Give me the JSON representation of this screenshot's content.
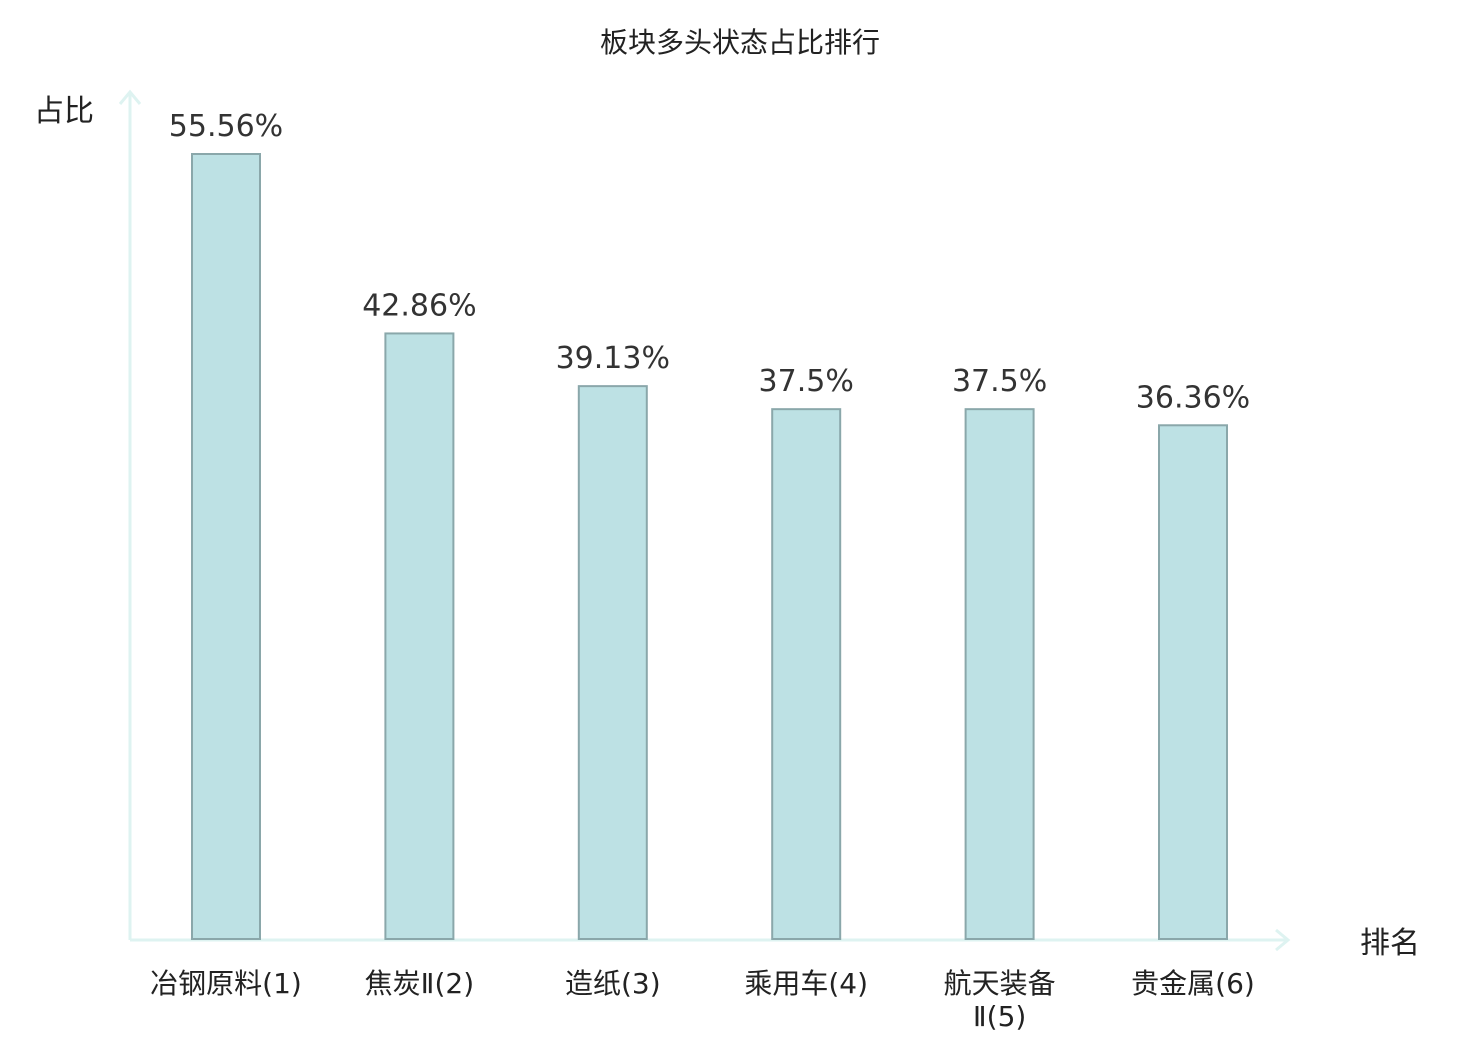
{
  "chart_data": {
    "type": "bar",
    "title": "板块多头状态占比排行",
    "ylabel": "占比",
    "xlabel": "排名",
    "categories": [
      "冶钢原料(1)",
      "焦炭Ⅱ(2)",
      "造纸(3)",
      "乘用车(4)",
      "航天装备Ⅱ(5)",
      "贵金属(6)"
    ],
    "category_lines": [
      [
        "冶钢原料(1)"
      ],
      [
        "焦炭Ⅱ(2)"
      ],
      [
        "造纸(3)"
      ],
      [
        "乘用车(4)"
      ],
      [
        "航天装备",
        "Ⅱ(5)"
      ],
      [
        "贵金属(6)"
      ]
    ],
    "values": [
      55.56,
      42.86,
      39.13,
      37.5,
      37.5,
      36.36
    ],
    "value_labels": [
      "55.56%",
      "42.86%",
      "39.13%",
      "37.5%",
      "37.5%",
      "36.36%"
    ],
    "highlight_index": 5,
    "ylim": [
      0,
      55.56
    ],
    "grid": false,
    "colors": {
      "bar_fill": "#bde1e4",
      "bar_stroke": "#8aa7aa",
      "axis": "#def3f1",
      "highlight_label": "#e8141e",
      "label": "#222222"
    }
  }
}
